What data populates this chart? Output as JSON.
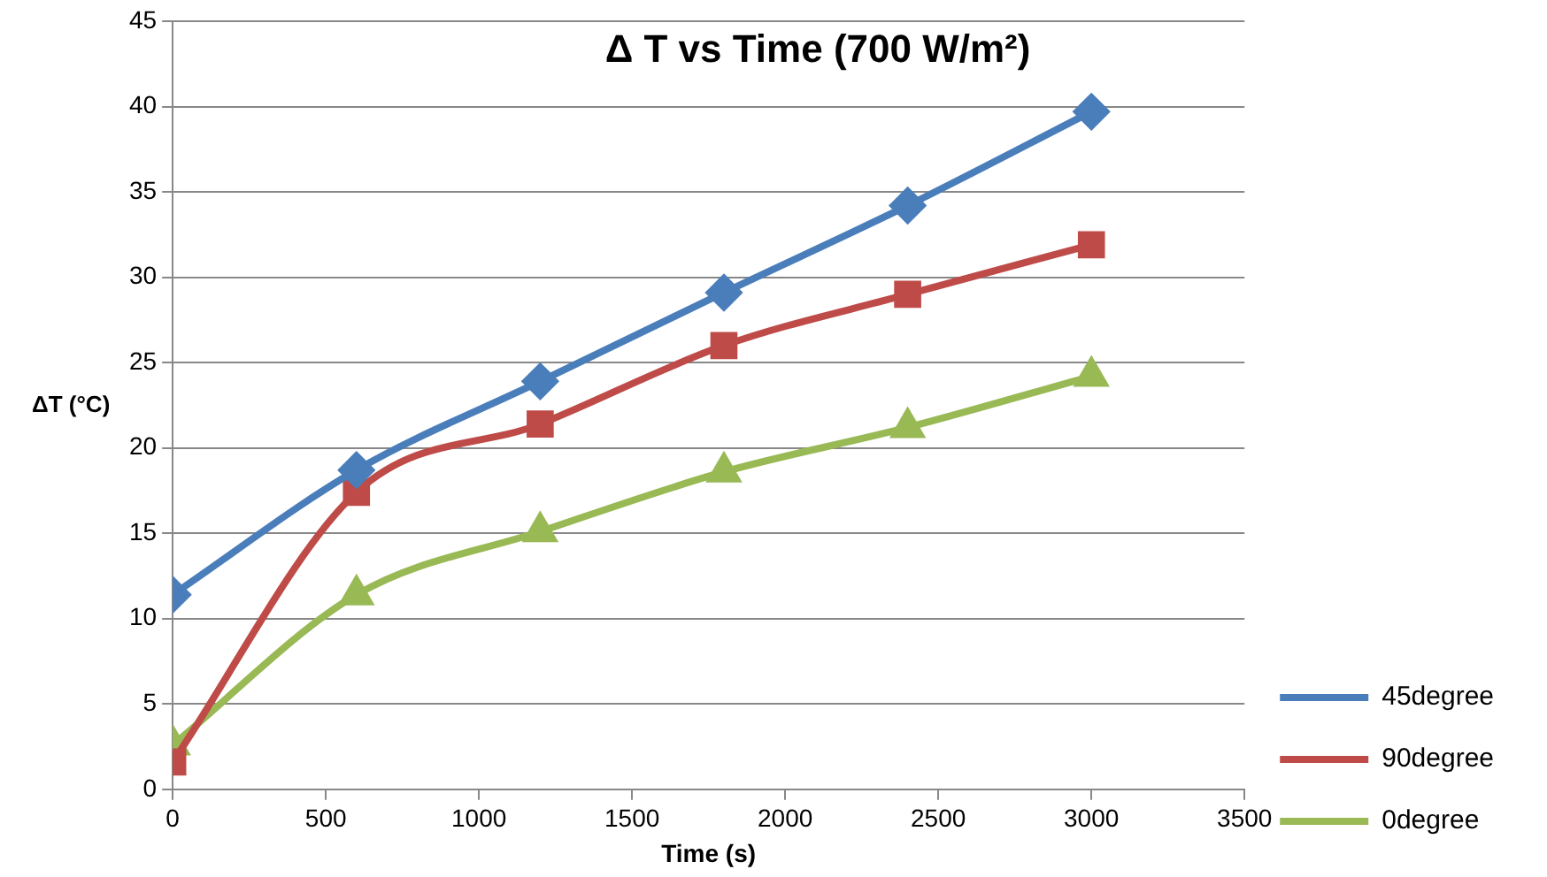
{
  "chart_data": {
    "type": "line",
    "title": "Δ T vs Time (700 W/m²)",
    "xlabel": "Time (s)",
    "ylabel": "ΔT (°C)",
    "x": [
      0,
      600,
      1200,
      1800,
      2400,
      3000
    ],
    "series": [
      {
        "name": "45degree",
        "color": "#4a7ebb",
        "marker": "diamond",
        "values": [
          11.4,
          18.7,
          23.9,
          29.1,
          34.2,
          39.7
        ]
      },
      {
        "name": "90degree",
        "color": "#be4b48",
        "marker": "square",
        "values": [
          1.6,
          17.4,
          21.4,
          26.0,
          29.0,
          31.9
        ]
      },
      {
        "name": "0degree",
        "color": "#98b954",
        "marker": "triangle",
        "values": [
          2.6,
          11.4,
          15.1,
          18.6,
          21.2,
          24.2
        ]
      }
    ],
    "xlim": [
      0,
      3500
    ],
    "xticks": [
      0,
      500,
      1000,
      1500,
      2000,
      2500,
      3000,
      3500
    ],
    "ylim": [
      0,
      45
    ],
    "yticks": [
      0,
      5,
      10,
      15,
      20,
      25,
      30,
      35,
      40,
      45
    ],
    "grid": "y",
    "legend": "right"
  }
}
